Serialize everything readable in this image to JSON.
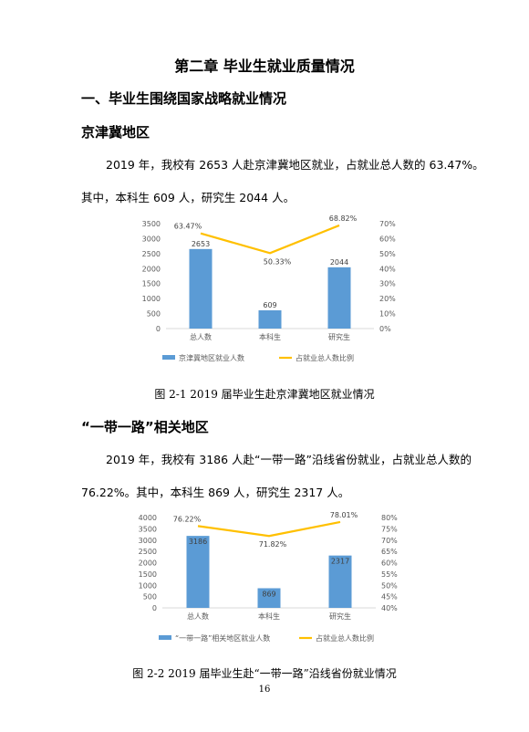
{
  "heading": {
    "chapter": "第二章  毕业生就业质量情况",
    "section": "一、毕业生围绕国家战略就业情况"
  },
  "part1": {
    "title": "京津冀地区",
    "para_line1": "2019 年，我校有 2653 人赴京津冀地区就业，占就业总人数的 63.47%。",
    "para_line2": "其中，本科生 609 人，研究生 2044 人。",
    "caption": "图 2-1 2019 届毕业生赴京津冀地区就业情况"
  },
  "part2": {
    "title": "“一带一路”相关地区",
    "para_line1": "2019 年，我校有 3186 人赴“一带一路”沿线省份就业，占就业总人数的",
    "para_line2": "76.22%。其中，本科生 869 人，研究生 2317 人。",
    "caption": "图 2-2 2019 届毕业生赴“一带一路”沿线省份就业情况"
  },
  "page_number": "16",
  "colors": {
    "bar": "#5b9bd5",
    "line": "#ffc000",
    "axis": "#595959",
    "grid": "#d9d9d9"
  },
  "chart_data": [
    {
      "type": "bar",
      "categories": [
        "总人数",
        "本科生",
        "研究生"
      ],
      "series": [
        {
          "name": "京津冀地区就业人数",
          "kind": "bar",
          "axis": "left",
          "values": [
            2653,
            609,
            2044
          ],
          "labels": [
            "2653",
            "609",
            "2044"
          ]
        },
        {
          "name": "占就业总人数比例",
          "kind": "line",
          "axis": "right",
          "values": [
            63.47,
            50.33,
            68.82
          ],
          "labels": [
            "63.47%",
            "50.33%",
            "68.82%"
          ]
        }
      ],
      "ylim": [
        0,
        3500
      ],
      "yticks": [
        "0",
        "500",
        "1000",
        "1500",
        "2000",
        "2500",
        "3000",
        "3500"
      ],
      "y2lim": [
        0,
        70
      ],
      "y2ticks": [
        "0%",
        "10%",
        "20%",
        "30%",
        "40%",
        "50%",
        "60%",
        "70%"
      ],
      "legend": "bottom",
      "grid": false
    },
    {
      "type": "bar",
      "categories": [
        "总人数",
        "本科生",
        "研究生"
      ],
      "series": [
        {
          "name": "“一带一路”相关地区就业人数",
          "kind": "bar",
          "axis": "left",
          "values": [
            3186,
            869,
            2317
          ],
          "labels": [
            "3186",
            "869",
            "2317"
          ]
        },
        {
          "name": "占就业总人数比例",
          "kind": "line",
          "axis": "right",
          "values": [
            76.22,
            71.82,
            78.01
          ],
          "labels": [
            "76.22%",
            "71.82%",
            "78.01%"
          ]
        }
      ],
      "ylim": [
        0,
        4000
      ],
      "yticks": [
        "0",
        "500",
        "1000",
        "1500",
        "2000",
        "2500",
        "3000",
        "3500",
        "4000"
      ],
      "y2lim": [
        40,
        80
      ],
      "y2ticks": [
        "40%",
        "45%",
        "50%",
        "55%",
        "60%",
        "65%",
        "70%",
        "75%",
        "80%"
      ],
      "legend": "bottom",
      "grid": false
    }
  ]
}
